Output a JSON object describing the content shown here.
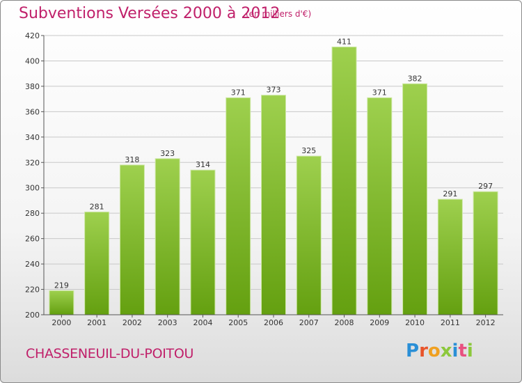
{
  "header": {
    "title": "Subventions Versées 2000 à 2012",
    "subtitle": "(en milliers d'€)"
  },
  "footer": {
    "city": "CHASSENEUIL-DU-POITOU",
    "logo_text": "Proxiti"
  },
  "colors": {
    "title": "#c0206a",
    "bar_top": "#9ed04e",
    "bar_bottom": "#64a010",
    "grid": "#c8c8c8"
  },
  "chart_data": {
    "type": "bar",
    "title": "Subventions Versées 2000 à 2012",
    "subtitle": "(en milliers d'€)",
    "xlabel": "",
    "ylabel": "",
    "categories": [
      "2000",
      "2001",
      "2002",
      "2003",
      "2004",
      "2005",
      "2006",
      "2007",
      "2008",
      "2009",
      "2010",
      "2011",
      "2012"
    ],
    "values": [
      219,
      281,
      318,
      323,
      314,
      371,
      373,
      325,
      411,
      371,
      382,
      291,
      297
    ],
    "ylim": [
      200,
      420
    ],
    "yticks": [
      200,
      220,
      240,
      260,
      280,
      300,
      320,
      340,
      360,
      380,
      400,
      420
    ],
    "grid": true
  }
}
